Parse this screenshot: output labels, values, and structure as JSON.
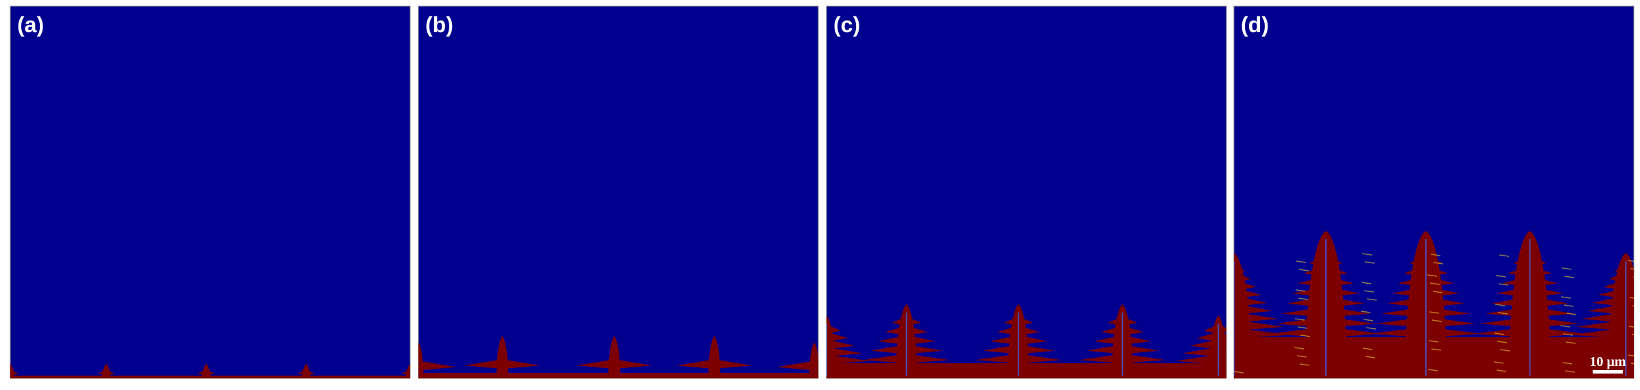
{
  "panels": [
    {
      "label": "(a)"
    },
    {
      "label": "(b)"
    },
    {
      "label": "(c)"
    },
    {
      "label": "(d)"
    }
  ],
  "scale_bar": {
    "label": "10 μm"
  }
}
